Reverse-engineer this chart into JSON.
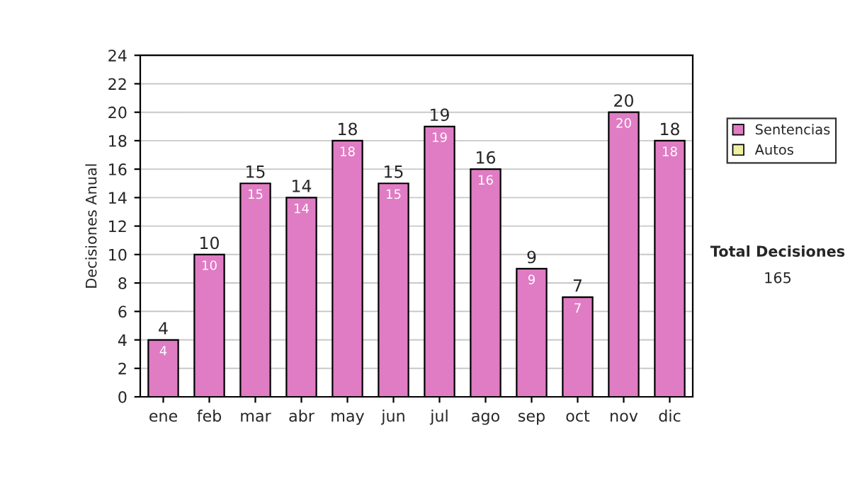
{
  "chart_data": {
    "type": "bar",
    "stacked": true,
    "ylabel": "Decisiones Anual",
    "categories": [
      "ene",
      "feb",
      "mar",
      "abr",
      "may",
      "jun",
      "jul",
      "ago",
      "sep",
      "oct",
      "nov",
      "dic"
    ],
    "series": [
      {
        "name": "Sentencias",
        "color": "#e07cc4",
        "values": [
          4,
          10,
          15,
          14,
          18,
          15,
          19,
          16,
          9,
          7,
          20,
          18
        ]
      },
      {
        "name": "Autos",
        "color": "#eef0a0",
        "values": [
          null,
          null,
          null,
          null,
          null,
          null,
          null,
          null,
          null,
          null,
          null,
          null
        ]
      }
    ],
    "data_labels": true,
    "totals": [
      "4",
      "10",
      "15",
      "14",
      "18",
      "15",
      "19",
      "16",
      "9",
      "7",
      "20",
      "18"
    ],
    "ylim": [
      0,
      24
    ],
    "yticks": [
      0,
      2,
      4,
      6,
      8,
      10,
      12,
      14,
      16,
      18,
      20,
      22,
      24
    ],
    "grid": "y",
    "legend": "right",
    "annotations": [
      "Total Decisiones",
      "165"
    ]
  }
}
